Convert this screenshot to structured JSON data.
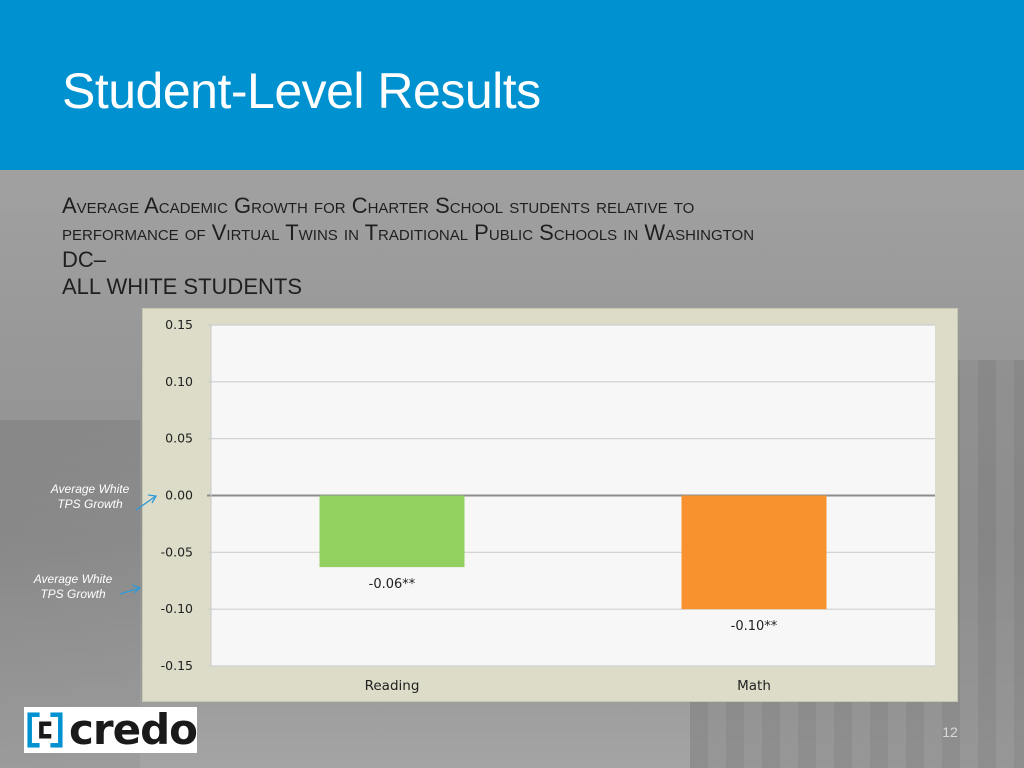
{
  "slide": {
    "title": "Student-Level Results",
    "subtitle_lines": [
      "Average Academic Growth for Charter School students relative to",
      "performance of Virtual Twins in Traditional Public Schools in Washington",
      "DC–",
      "ALL WHITE STUDENTS"
    ],
    "notes": [
      "Average White TPS Growth",
      "Average White TPS Growth"
    ],
    "logo_text": "credo",
    "page_number": "12"
  },
  "chart_data": {
    "type": "bar",
    "categories": [
      "Reading",
      "Math"
    ],
    "values": [
      -0.063,
      -0.1
    ],
    "data_labels": [
      "-0.06**",
      "-0.10**"
    ],
    "colors": [
      "#92d060",
      "#f7922e"
    ],
    "ylim": [
      -0.15,
      0.15
    ],
    "yticks": [
      "0.15",
      "0.10",
      "0.05",
      "0.00",
      "-0.05",
      "-0.10",
      "-0.15"
    ],
    "ytick_values": [
      0.15,
      0.1,
      0.05,
      0,
      -0.05,
      -0.1,
      -0.15
    ],
    "grid": true,
    "plot_background": "#f7f7f7",
    "frame_background": "#dcdcc8"
  }
}
